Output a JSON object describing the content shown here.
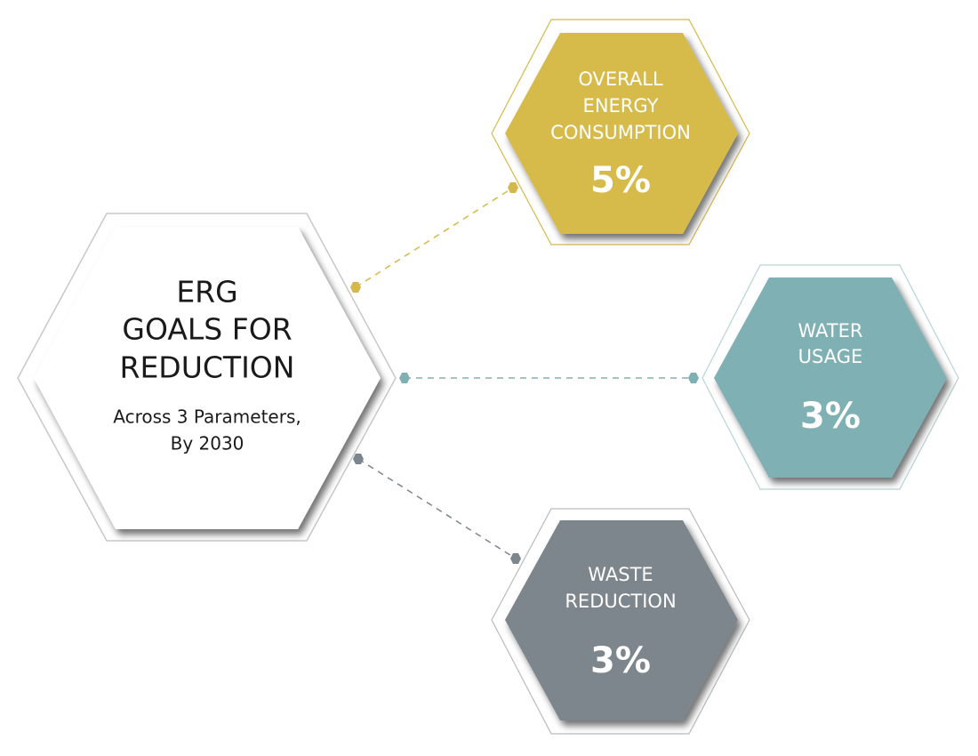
{
  "center": {
    "title_lines": [
      "ERG",
      "GOALS FOR",
      "REDUCTION"
    ],
    "subtitle_lines": [
      "Across 3 Parameters,",
      "By 2030"
    ]
  },
  "nodes": [
    {
      "label_lines": [
        "OVERALL",
        "ENERGY",
        "CONSUMPTION"
      ],
      "value": "5%"
    },
    {
      "label_lines": [
        "WATER",
        "USAGE"
      ],
      "value": "3%"
    },
    {
      "label_lines": [
        "WASTE",
        "REDUCTION"
      ],
      "value": "3%"
    }
  ]
}
